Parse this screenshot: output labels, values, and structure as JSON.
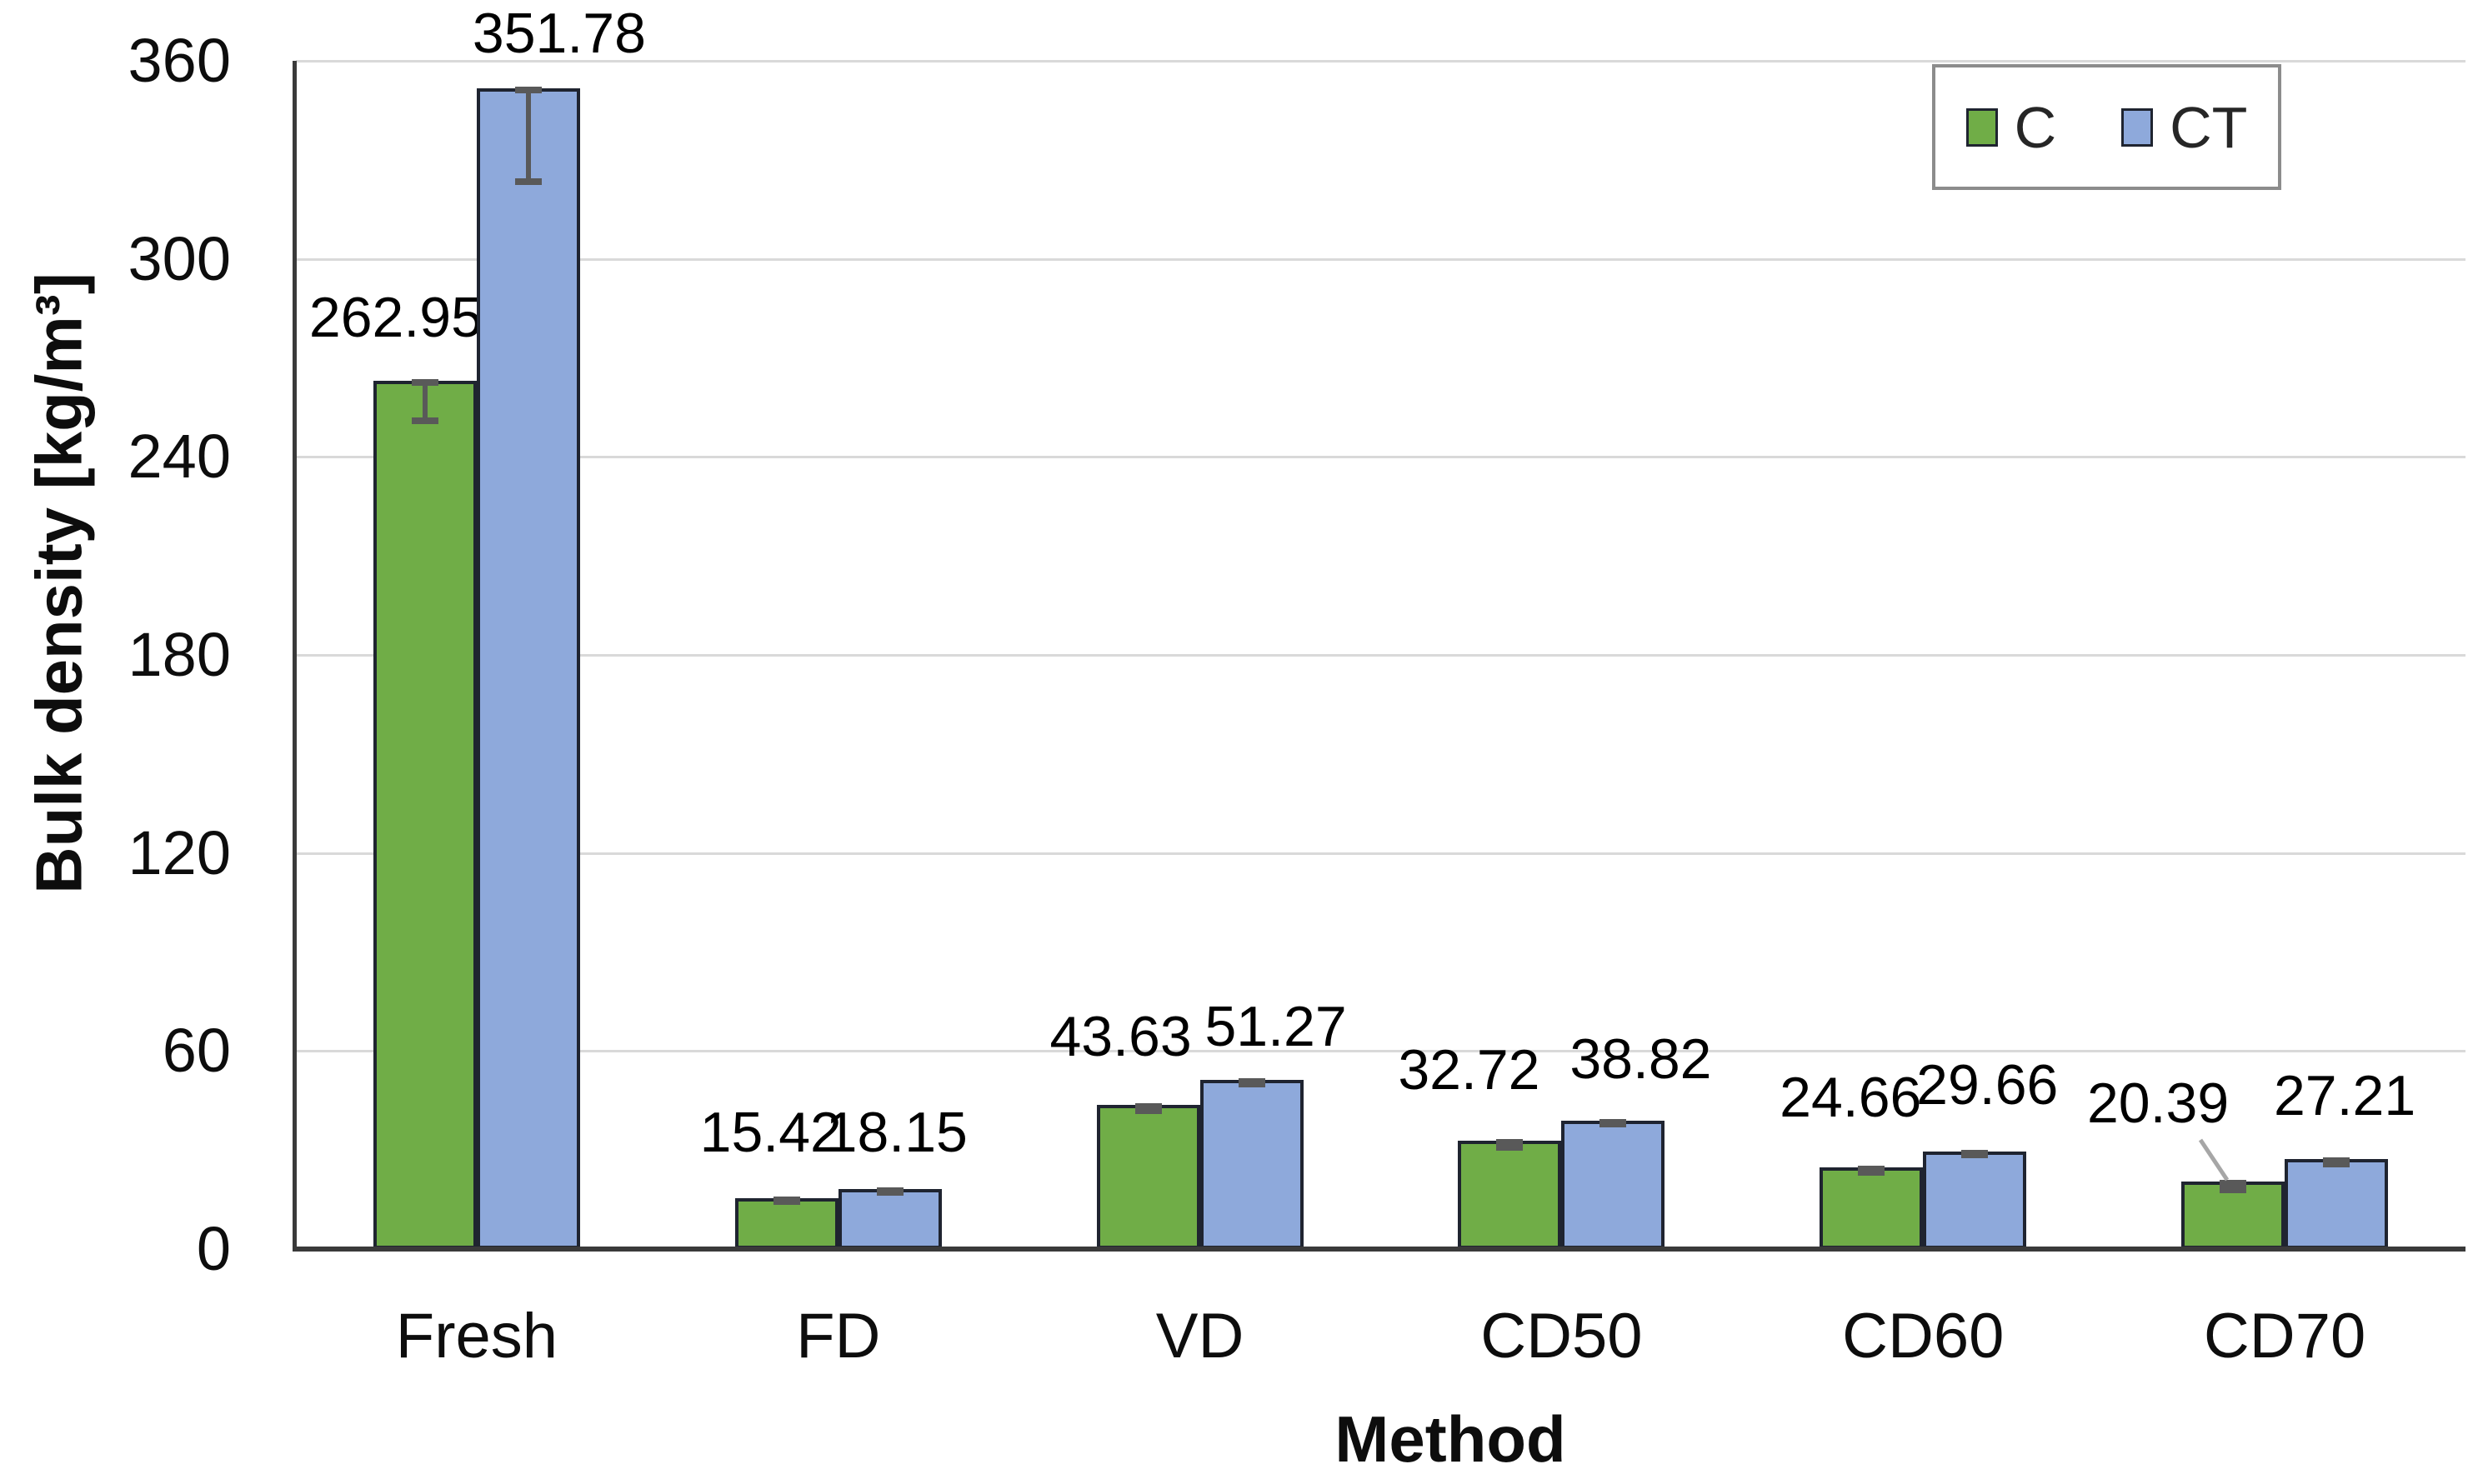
{
  "chart_data": {
    "type": "bar",
    "title": "",
    "categories": [
      "Fresh",
      "FD",
      "VD",
      "CD50",
      "CD60",
      "CD70"
    ],
    "series": [
      {
        "name": "C",
        "color": "#70AD47",
        "values": [
          262.95,
          15.42,
          43.63,
          32.72,
          24.66,
          20.39
        ],
        "error_minus": [
          12.1,
          1.0,
          1.8,
          2.0,
          1.5,
          2.5
        ]
      },
      {
        "name": "CT",
        "color": "#8EA9DB",
        "values": [
          351.78,
          18.15,
          51.27,
          38.82,
          29.66,
          27.21
        ],
        "error_minus": [
          28.5,
          1.0,
          1.2,
          1.0,
          1.2,
          1.5
        ]
      }
    ],
    "data_labels": {
      "C": [
        "262.95",
        "15.42",
        "43.63",
        "32.72",
        "24.66",
        "20.39"
      ],
      "CT": [
        "351.78",
        "18.15",
        "51.27",
        "38.82",
        "29.66",
        "27.21"
      ]
    },
    "xlabel": "Method",
    "ylabel": "Bulk density [kg/m³]",
    "ylim": [
      0,
      360
    ],
    "yticks": [
      0,
      60,
      120,
      180,
      240,
      300,
      360
    ],
    "grid": "horizontal",
    "legend_position": "top-right",
    "error_bars": "minus direction, gray with end caps",
    "annotation": "label 20.39 connected to CD70 C bar by leader line"
  },
  "colors": {
    "series_c": "#70AD47",
    "series_ct": "#8EA9DB",
    "bar_outline": "#1F2430",
    "gridline": "#D9D9D9",
    "axis_line": "#3A3A3A",
    "error_bar": "#595959",
    "leader_line": "#A6A6A6",
    "legend_border": "#8C8C8C",
    "text": "#000000",
    "background": "#FFFFFF"
  }
}
